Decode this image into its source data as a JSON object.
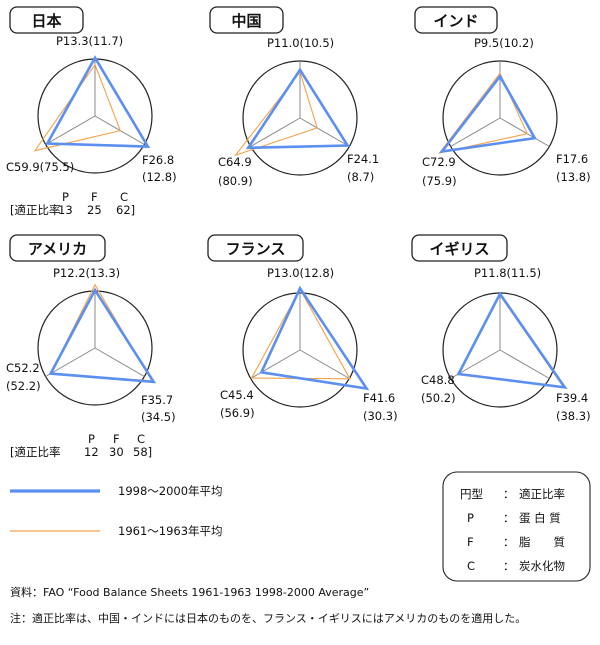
{
  "colors": {
    "series_2000": "#5b8ff0",
    "series_1961": "#f4a24a",
    "axis": "#888888",
    "circle": "#222222"
  },
  "legend": {
    "line_2000": "1998～2000年平均",
    "line_1961": "1961～1963年平均",
    "box": [
      {
        "key": "円型",
        "sep": "：",
        "value": "適正比率"
      },
      {
        "key": "P",
        "sep": "：",
        "value": "蛋 白 質"
      },
      {
        "key": "F",
        "sep": "：",
        "value": "脂　　質"
      },
      {
        "key": "C",
        "sep": "：",
        "value": "炭水化物"
      }
    ]
  },
  "ratio_blocks": [
    {
      "prefix": "[適正比率",
      "heads": [
        "P",
        "F",
        "C"
      ],
      "values": [
        "13",
        "25",
        "62]"
      ]
    },
    {
      "prefix": "[適正比率",
      "heads": [
        "P",
        "F",
        "C"
      ],
      "values": [
        "12",
        "30",
        "58]"
      ]
    }
  ],
  "notes": {
    "source": "資料：FAO “Food Balance Sheets 1961-1963 1998-2000 Average”",
    "note": "注：適正比率は、中国・インドには日本のものを、フランス・イギリスにはアメリカのものを適用した。"
  },
  "chart_data": [
    {
      "type": "radar",
      "title": "日本",
      "series": [
        {
          "name": "1998～2000年平均",
          "values": {
            "P": 13.3,
            "F": 26.8,
            "C": 59.9
          }
        },
        {
          "name": "1961～1963年平均",
          "values": {
            "P": 11.7,
            "F": 12.8,
            "C": 75.5
          }
        }
      ],
      "ideal": {
        "P": 13,
        "F": 25,
        "C": 62
      },
      "labels": {
        "P": [
          "P13.3(11.7)"
        ],
        "F": [
          "F26.8",
          "(12.8)"
        ],
        "C": [
          "C59.9(75.5)"
        ]
      }
    },
    {
      "type": "radar",
      "title": "中国",
      "series": [
        {
          "name": "1998～2000年平均",
          "values": {
            "P": 11.0,
            "F": 24.1,
            "C": 64.9
          }
        },
        {
          "name": "1961～1963年平均",
          "values": {
            "P": 10.5,
            "F": 8.7,
            "C": 80.9
          }
        }
      ],
      "ideal": {
        "P": 13,
        "F": 25,
        "C": 62
      },
      "labels": {
        "P": [
          "P11.0(10.5)"
        ],
        "F": [
          "F24.1",
          "(8.7)"
        ],
        "C": [
          "C64.9",
          "(80.9)"
        ]
      }
    },
    {
      "type": "radar",
      "title": "インド",
      "series": [
        {
          "name": "1998～2000年平均",
          "values": {
            "P": 9.5,
            "F": 17.6,
            "C": 72.9
          }
        },
        {
          "name": "1961～1963年平均",
          "values": {
            "P": 10.2,
            "F": 13.8,
            "C": 75.9
          }
        }
      ],
      "ideal": {
        "P": 13,
        "F": 25,
        "C": 62
      },
      "labels": {
        "P": [
          "P9.5(10.2)"
        ],
        "F": [
          "F17.6",
          "(13.8)"
        ],
        "C": [
          "C72.9",
          "(75.9)"
        ]
      }
    },
    {
      "type": "radar",
      "title": "アメリカ",
      "series": [
        {
          "name": "1998～2000年平均",
          "values": {
            "P": 12.2,
            "F": 35.7,
            "C": 52.2
          }
        },
        {
          "name": "1961～1963年平均",
          "values": {
            "P": 13.3,
            "F": 34.5,
            "C": 52.2
          }
        }
      ],
      "ideal": {
        "P": 12,
        "F": 30,
        "C": 58
      },
      "labels": {
        "P": [
          "P12.2(13.3)"
        ],
        "F": [
          "F35.7",
          "(34.5)"
        ],
        "C": [
          "C52.2",
          "(52.2)"
        ]
      }
    },
    {
      "type": "radar",
      "title": "フランス",
      "series": [
        {
          "name": "1998～2000年平均",
          "values": {
            "P": 13.0,
            "F": 41.6,
            "C": 45.4
          }
        },
        {
          "name": "1961～1963年平均",
          "values": {
            "P": 12.8,
            "F": 30.3,
            "C": 56.9
          }
        }
      ],
      "ideal": {
        "P": 12,
        "F": 30,
        "C": 58
      },
      "labels": {
        "P": [
          "P13.0(12.8)"
        ],
        "F": [
          "F41.6",
          "(30.3)"
        ],
        "C": [
          "C45.4",
          "(56.9)"
        ]
      }
    },
    {
      "type": "radar",
      "title": "イギリス",
      "series": [
        {
          "name": "1998～2000年平均",
          "values": {
            "P": 11.8,
            "F": 39.4,
            "C": 48.8
          }
        },
        {
          "name": "1961～1963年平均",
          "values": {
            "P": 11.5,
            "F": 38.3,
            "C": 50.2
          }
        }
      ],
      "ideal": {
        "P": 12,
        "F": 30,
        "C": 58
      },
      "labels": {
        "P": [
          "P11.8(11.5)"
        ],
        "F": [
          "F39.4",
          "(38.3)"
        ],
        "C": [
          "C48.8",
          "(50.2)"
        ]
      }
    }
  ]
}
